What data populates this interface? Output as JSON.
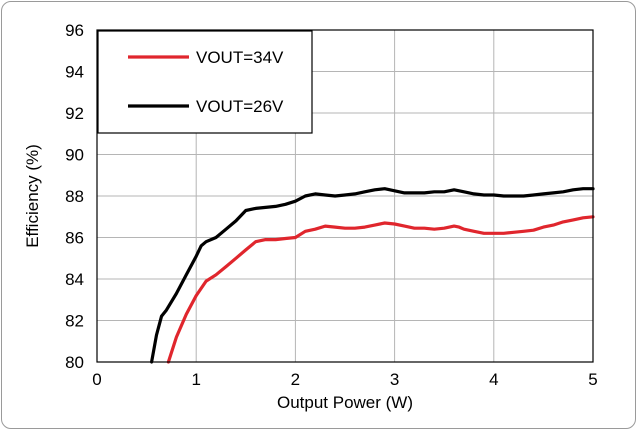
{
  "chart_data": {
    "type": "line",
    "xlabel": "Output Power (W)",
    "ylabel": "Efficiency (%)",
    "xlim": [
      0,
      5
    ],
    "ylim": [
      80,
      96
    ],
    "xticks": [
      "0",
      "1",
      "2",
      "3",
      "4",
      "5"
    ],
    "yticks": [
      "80",
      "82",
      "84",
      "86",
      "88",
      "90",
      "92",
      "94",
      "96"
    ],
    "grid": true,
    "legend_position": "top-left",
    "series": [
      {
        "name": "VOUT=34V",
        "color": "#e0262d",
        "x": [
          0.72,
          0.8,
          0.9,
          1.0,
          1.1,
          1.2,
          1.3,
          1.4,
          1.5,
          1.6,
          1.7,
          1.8,
          1.9,
          2.0,
          2.1,
          2.2,
          2.3,
          2.4,
          2.5,
          2.6,
          2.7,
          2.8,
          2.9,
          3.0,
          3.1,
          3.2,
          3.3,
          3.4,
          3.5,
          3.6,
          3.65,
          3.7,
          3.8,
          3.9,
          4.0,
          4.1,
          4.2,
          4.3,
          4.4,
          4.5,
          4.6,
          4.7,
          4.8,
          4.9,
          5.0
        ],
        "y": [
          80.0,
          81.2,
          82.3,
          83.2,
          83.9,
          84.2,
          84.6,
          85.0,
          85.4,
          85.8,
          85.9,
          85.9,
          85.95,
          86.0,
          86.3,
          86.4,
          86.55,
          86.5,
          86.45,
          86.45,
          86.5,
          86.6,
          86.7,
          86.65,
          86.55,
          86.45,
          86.45,
          86.4,
          86.45,
          86.55,
          86.5,
          86.4,
          86.3,
          86.2,
          86.2,
          86.2,
          86.25,
          86.3,
          86.35,
          86.5,
          86.6,
          86.75,
          86.85,
          86.95,
          87.0
        ]
      },
      {
        "name": "VOUT=26V",
        "color": "#000000",
        "x": [
          0.55,
          0.6,
          0.65,
          0.7,
          0.8,
          0.9,
          1.0,
          1.05,
          1.1,
          1.2,
          1.3,
          1.4,
          1.5,
          1.6,
          1.7,
          1.8,
          1.9,
          2.0,
          2.1,
          2.2,
          2.3,
          2.4,
          2.5,
          2.6,
          2.7,
          2.8,
          2.9,
          3.0,
          3.1,
          3.2,
          3.3,
          3.4,
          3.5,
          3.6,
          3.65,
          3.7,
          3.8,
          3.9,
          4.0,
          4.1,
          4.2,
          4.3,
          4.4,
          4.5,
          4.6,
          4.7,
          4.8,
          4.9,
          5.0
        ],
        "y": [
          80.0,
          81.3,
          82.2,
          82.5,
          83.3,
          84.2,
          85.1,
          85.6,
          85.8,
          86.0,
          86.4,
          86.8,
          87.3,
          87.4,
          87.45,
          87.5,
          87.6,
          87.75,
          88.0,
          88.1,
          88.05,
          88.0,
          88.05,
          88.1,
          88.2,
          88.3,
          88.35,
          88.25,
          88.15,
          88.15,
          88.15,
          88.2,
          88.2,
          88.3,
          88.25,
          88.2,
          88.1,
          88.05,
          88.05,
          88.0,
          88.0,
          88.0,
          88.05,
          88.1,
          88.15,
          88.2,
          88.3,
          88.35,
          88.35
        ]
      }
    ]
  }
}
